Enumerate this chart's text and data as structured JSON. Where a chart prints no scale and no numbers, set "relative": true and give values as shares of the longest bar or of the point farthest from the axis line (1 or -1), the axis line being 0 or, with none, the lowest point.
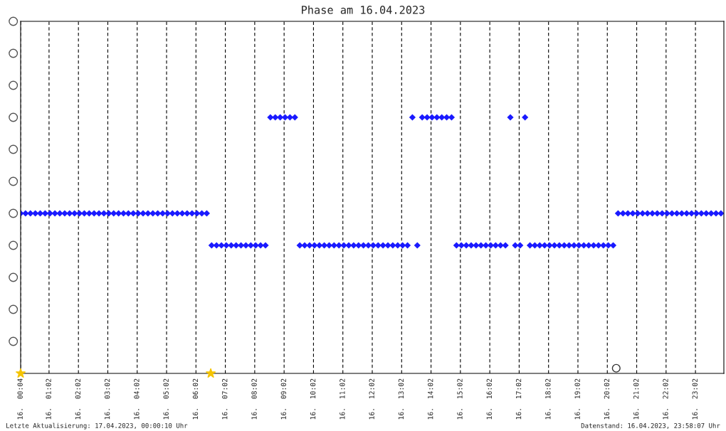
{
  "chart_data": {
    "type": "scatter",
    "title": "Phase am 16.04.2023",
    "relative": true,
    "marker": "diamond",
    "grid": "x",
    "legend": false,
    "xlim": [
      "2023-04-16T00:04",
      "2023-04-17T00:00"
    ],
    "xticks": [
      {
        "value": "2023-04-16T00:04",
        "label": "16.  00:04"
      },
      {
        "value": "2023-04-16T01:02",
        "label": "16.  01:02"
      },
      {
        "value": "2023-04-16T02:02",
        "label": "16.  02:02"
      },
      {
        "value": "2023-04-16T03:02",
        "label": "16.  03:02"
      },
      {
        "value": "2023-04-16T04:02",
        "label": "16.  04:02"
      },
      {
        "value": "2023-04-16T05:02",
        "label": "16.  05:02"
      },
      {
        "value": "2023-04-16T06:02",
        "label": "16.  06:02"
      },
      {
        "value": "2023-04-16T07:02",
        "label": "16.  07:02"
      },
      {
        "value": "2023-04-16T08:02",
        "label": "16.  08:02"
      },
      {
        "value": "2023-04-16T09:02",
        "label": "16.  09:02"
      },
      {
        "value": "2023-04-16T10:02",
        "label": "16.  10:02"
      },
      {
        "value": "2023-04-16T11:02",
        "label": "16.  11:02"
      },
      {
        "value": "2023-04-16T12:02",
        "label": "16.  12:02"
      },
      {
        "value": "2023-04-16T13:02",
        "label": "16.  13:02"
      },
      {
        "value": "2023-04-16T14:02",
        "label": "16.  14:02"
      },
      {
        "value": "2023-04-16T15:02",
        "label": "16.  15:02"
      },
      {
        "value": "2023-04-16T16:02",
        "label": "16.  16:02"
      },
      {
        "value": "2023-04-16T17:02",
        "label": "16.  17:02"
      },
      {
        "value": "2023-04-16T18:02",
        "label": "16.  18:02"
      },
      {
        "value": "2023-04-16T19:02",
        "label": "16.  19:02"
      },
      {
        "value": "2023-04-16T20:02",
        "label": "16.  20:02"
      },
      {
        "value": "2023-04-16T21:02",
        "label": "16.  21:02"
      },
      {
        "value": "2023-04-16T22:02",
        "label": "16.  22:02"
      },
      {
        "value": "2023-04-16T23:02",
        "label": "16.  23:02"
      }
    ],
    "annotations": [
      "Letzte Aktualisierung: 17.04.2023, 00:00:10 Uhr",
      "Datenstand: 16.04.2023, 23:58:07 Uhr"
    ],
    "series": [
      {
        "color": "#1a1aff",
        "x": [
          "2023-04-16T00:04",
          "2023-04-16T00:14",
          "2023-04-16T00:24",
          "2023-04-16T00:34",
          "2023-04-16T00:44",
          "2023-04-16T00:54",
          "2023-04-16T01:04",
          "2023-04-16T01:14",
          "2023-04-16T01:24",
          "2023-04-16T01:34",
          "2023-04-16T01:44",
          "2023-04-16T01:54",
          "2023-04-16T02:04",
          "2023-04-16T02:14",
          "2023-04-16T02:24",
          "2023-04-16T02:34",
          "2023-04-16T02:44",
          "2023-04-16T02:54",
          "2023-04-16T03:04",
          "2023-04-16T03:14",
          "2023-04-16T03:24",
          "2023-04-16T03:34",
          "2023-04-16T03:44",
          "2023-04-16T03:54",
          "2023-04-16T04:04",
          "2023-04-16T04:14",
          "2023-04-16T04:24",
          "2023-04-16T04:34",
          "2023-04-16T04:44",
          "2023-04-16T04:54",
          "2023-04-16T05:04",
          "2023-04-16T05:14",
          "2023-04-16T05:24",
          "2023-04-16T05:34",
          "2023-04-16T05:44",
          "2023-04-16T05:54",
          "2023-04-16T06:04",
          "2023-04-16T06:14",
          "2023-04-16T06:24",
          "2023-04-16T06:34",
          "2023-04-16T06:44",
          "2023-04-16T06:54",
          "2023-04-16T07:04",
          "2023-04-16T07:14",
          "2023-04-16T07:24",
          "2023-04-16T07:34",
          "2023-04-16T07:44",
          "2023-04-16T07:54",
          "2023-04-16T08:04",
          "2023-04-16T08:14",
          "2023-04-16T08:24",
          "2023-04-16T08:34",
          "2023-04-16T08:44",
          "2023-04-16T08:54",
          "2023-04-16T09:04",
          "2023-04-16T09:14",
          "2023-04-16T09:24",
          "2023-04-16T09:34",
          "2023-04-16T09:44",
          "2023-04-16T09:54",
          "2023-04-16T10:04",
          "2023-04-16T10:14",
          "2023-04-16T10:24",
          "2023-04-16T10:34",
          "2023-04-16T10:44",
          "2023-04-16T10:54",
          "2023-04-16T11:04",
          "2023-04-16T11:14",
          "2023-04-16T11:24",
          "2023-04-16T11:34",
          "2023-04-16T11:44",
          "2023-04-16T11:54",
          "2023-04-16T12:04",
          "2023-04-16T12:14",
          "2023-04-16T12:24",
          "2023-04-16T12:34",
          "2023-04-16T12:44",
          "2023-04-16T12:54",
          "2023-04-16T13:04",
          "2023-04-16T13:14",
          "2023-04-16T13:24",
          "2023-04-16T13:34",
          "2023-04-16T13:44",
          "2023-04-16T13:54",
          "2023-04-16T14:04",
          "2023-04-16T14:14",
          "2023-04-16T14:24",
          "2023-04-16T14:34",
          "2023-04-16T14:44",
          "2023-04-16T14:54",
          "2023-04-16T15:04",
          "2023-04-16T15:14",
          "2023-04-16T15:24",
          "2023-04-16T15:34",
          "2023-04-16T15:44",
          "2023-04-16T15:54",
          "2023-04-16T16:04",
          "2023-04-16T16:14",
          "2023-04-16T16:24",
          "2023-04-16T16:34",
          "2023-04-16T16:44",
          "2023-04-16T16:54",
          "2023-04-16T17:04",
          "2023-04-16T17:14",
          "2023-04-16T17:24",
          "2023-04-16T17:34",
          "2023-04-16T17:44",
          "2023-04-16T17:54",
          "2023-04-16T18:04",
          "2023-04-16T18:14",
          "2023-04-16T18:24",
          "2023-04-16T18:34",
          "2023-04-16T18:44",
          "2023-04-16T18:54",
          "2023-04-16T19:04",
          "2023-04-16T19:14",
          "2023-04-16T19:24",
          "2023-04-16T19:34",
          "2023-04-16T19:44",
          "2023-04-16T19:54",
          "2023-04-16T20:04",
          "2023-04-16T20:14",
          "2023-04-16T20:24",
          "2023-04-16T20:34",
          "2023-04-16T20:44",
          "2023-04-16T20:54",
          "2023-04-16T21:04",
          "2023-04-16T21:14",
          "2023-04-16T21:24",
          "2023-04-16T21:34",
          "2023-04-16T21:44",
          "2023-04-16T21:54",
          "2023-04-16T22:04",
          "2023-04-16T22:14",
          "2023-04-16T22:24",
          "2023-04-16T22:34",
          "2023-04-16T22:44",
          "2023-04-16T22:54",
          "2023-04-16T23:04",
          "2023-04-16T23:14",
          "2023-04-16T23:24",
          "2023-04-16T23:34",
          "2023-04-16T23:44",
          "2023-04-16T23:54"
        ],
        "values": [
          0.625,
          0.625,
          0.625,
          0.625,
          0.625,
          0.625,
          0.625,
          0.625,
          0.625,
          0.625,
          0.625,
          0.625,
          0.625,
          0.625,
          0.625,
          0.625,
          0.625,
          0.625,
          0.625,
          0.625,
          0.625,
          0.625,
          0.625,
          0.625,
          0.625,
          0.625,
          0.625,
          0.625,
          0.625,
          0.625,
          0.625,
          0.625,
          0.625,
          0.625,
          0.625,
          0.625,
          0.625,
          0.625,
          0.625,
          0.5,
          0.5,
          0.5,
          0.5,
          0.5,
          0.5,
          0.5,
          0.5,
          0.5,
          0.5,
          0.5,
          0.5,
          1,
          1,
          1,
          1,
          1,
          1,
          0.5,
          0.5,
          0.5,
          0.5,
          0.5,
          0.5,
          0.5,
          0.5,
          0.5,
          0.5,
          0.5,
          0.5,
          0.5,
          0.5,
          0.5,
          0.5,
          0.5,
          0.5,
          0.5,
          0.5,
          0.5,
          0.5,
          0.5,
          1,
          0.5,
          1,
          1,
          1,
          1,
          1,
          1,
          1,
          0.5,
          0.5,
          0.5,
          0.5,
          0.5,
          0.5,
          0.5,
          0.5,
          0.5,
          0.5,
          0.5,
          1,
          0.5,
          0.5,
          1,
          0.5,
          0.5,
          0.5,
          0.5,
          0.5,
          0.5,
          0.5,
          0.5,
          0.5,
          0.5,
          0.5,
          0.5,
          0.5,
          0.5,
          0.5,
          0.5,
          0.5,
          0.5,
          0.625,
          0.625,
          0.625,
          0.625,
          0.625,
          0.625,
          0.625,
          0.625,
          0.625,
          0.625,
          0.625,
          0.625,
          0.625,
          0.625,
          0.625,
          0.625,
          0.625,
          0.625,
          0.625,
          0.625,
          0.625,
          0.625
        ]
      }
    ]
  }
}
